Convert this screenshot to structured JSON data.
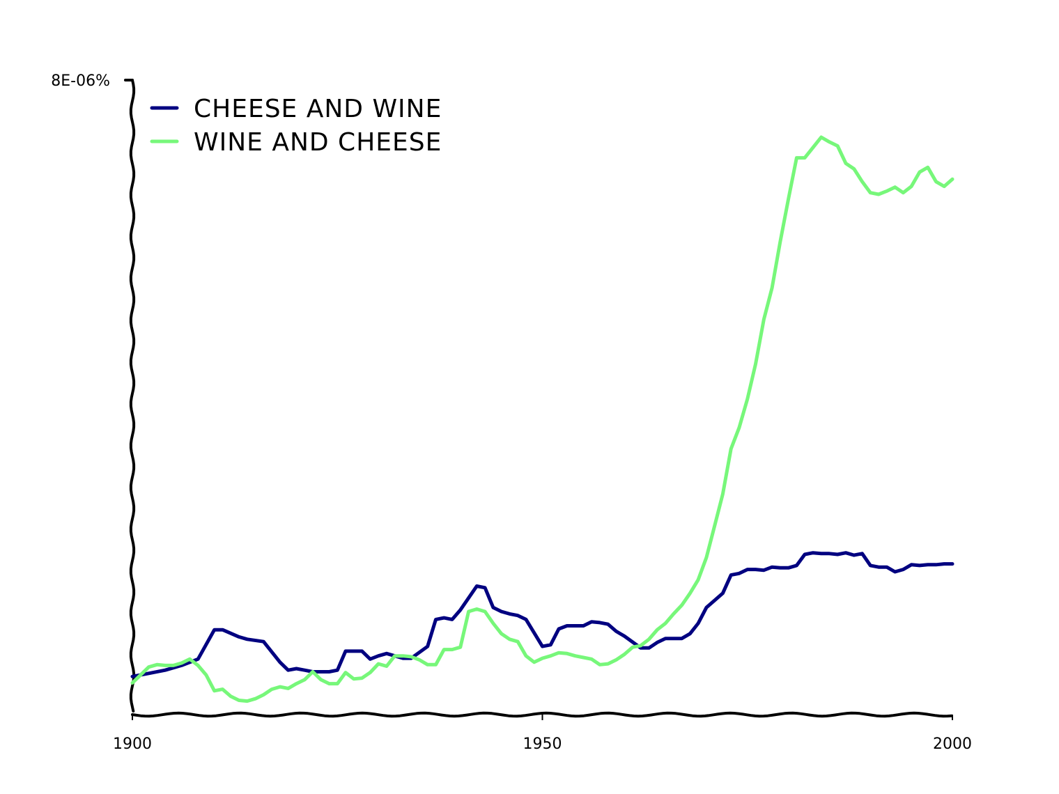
{
  "colors": {
    "cheese_and_wine": "#000080",
    "wine_and_cheese": "#77f77a",
    "axis": "#000000"
  },
  "chart_data": {
    "type": "line",
    "title": "",
    "xlabel": "",
    "ylabel": "",
    "xlim": [
      1900,
      2000
    ],
    "ylim": [
      0,
      8e-06
    ],
    "x_ticks": [
      "1900",
      "1950",
      "2000"
    ],
    "y_ticks": [
      "8E-06%"
    ],
    "grid": false,
    "legend_position": "top-left",
    "series": [
      {
        "name": "CHEESE AND WINE",
        "color": "#000080",
        "x": [
          1900,
          1902,
          1904,
          1906,
          1908,
          1910,
          1911,
          1913,
          1914,
          1916,
          1918,
          1919,
          1920,
          1921,
          1922,
          1924,
          1925,
          1926,
          1927,
          1928,
          1929,
          1930,
          1931,
          1932,
          1933,
          1934,
          1936,
          1937,
          1938,
          1939,
          1940,
          1942,
          1943,
          1944,
          1945,
          1946,
          1947,
          1948,
          1950,
          1951,
          1952,
          1953,
          1954,
          1955,
          1956,
          1957,
          1958,
          1959,
          1960,
          1962,
          1963,
          1964,
          1965,
          1966,
          1967,
          1968,
          1969,
          1970,
          1971,
          1972,
          1973,
          1974,
          1975,
          1976,
          1977,
          1978,
          1979,
          1980,
          1981,
          1982,
          1983,
          1984,
          1985,
          1986,
          1987,
          1988,
          1989,
          1990,
          1991,
          1992,
          1993,
          1994,
          1995,
          1996,
          1997,
          1998,
          1999,
          2000
        ],
        "y": [
          4.8e-07,
          5.2e-07,
          5.6e-07,
          6.2e-07,
          7e-07,
          1.07e-06,
          1.07e-06,
          9.8e-07,
          9.5e-07,
          9.2e-07,
          6.6e-07,
          5.6e-07,
          5.8e-07,
          5.6e-07,
          5.4e-07,
          5.4e-07,
          5.6e-07,
          8e-07,
          8e-07,
          8e-07,
          7e-07,
          7.4e-07,
          7.7e-07,
          7.4e-07,
          7.1e-07,
          7.1e-07,
          8.6e-07,
          1.2e-06,
          1.22e-06,
          1.2e-06,
          1.32e-06,
          1.62e-06,
          1.6e-06,
          1.35e-06,
          1.3e-06,
          1.27e-06,
          1.25e-06,
          1.2e-06,
          8.6e-07,
          8.8e-07,
          1.08e-06,
          1.12e-06,
          1.12e-06,
          1.12e-06,
          1.17e-06,
          1.16e-06,
          1.14e-06,
          1.05e-06,
          9.9e-07,
          8.4e-07,
          8.4e-07,
          9.1e-07,
          9.6e-07,
          9.6e-07,
          9.6e-07,
          1.02e-06,
          1.15e-06,
          1.35e-06,
          1.44e-06,
          1.53e-06,
          1.76e-06,
          1.78e-06,
          1.83e-06,
          1.83e-06,
          1.82e-06,
          1.86e-06,
          1.85e-06,
          1.85e-06,
          1.88e-06,
          2.02e-06,
          2.04e-06,
          2.03e-06,
          2.03e-06,
          2.02e-06,
          2.04e-06,
          2.01e-06,
          2.03e-06,
          1.88e-06,
          1.86e-06,
          1.86e-06,
          1.8e-06,
          1.83e-06,
          1.89e-06,
          1.88e-06,
          1.89e-06,
          1.89e-06,
          1.9e-06,
          1.9e-06
        ]
      },
      {
        "name": "WINE AND CHEESE",
        "color": "#77f77a",
        "x": [
          1900,
          1901,
          1902,
          1903,
          1904,
          1905,
          1906,
          1907,
          1908,
          1909,
          1910,
          1911,
          1912,
          1913,
          1914,
          1915,
          1916,
          1917,
          1918,
          1919,
          1920,
          1921,
          1922,
          1923,
          1924,
          1925,
          1926,
          1927,
          1928,
          1929,
          1930,
          1931,
          1932,
          1933,
          1934,
          1935,
          1936,
          1937,
          1938,
          1939,
          1940,
          1941,
          1942,
          1943,
          1944,
          1945,
          1946,
          1947,
          1948,
          1949,
          1950,
          1951,
          1952,
          1953,
          1954,
          1955,
          1956,
          1957,
          1958,
          1959,
          1960,
          1961,
          1962,
          1963,
          1964,
          1965,
          1966,
          1967,
          1968,
          1969,
          1970,
          1971,
          1972,
          1973,
          1974,
          1975,
          1976,
          1977,
          1978,
          1979,
          1980,
          1981,
          1982,
          1983,
          1984,
          1985,
          1986,
          1987,
          1988,
          1989,
          1990,
          1991,
          1992,
          1993,
          1994,
          1995,
          1996,
          1997,
          1998,
          1999,
          2000
        ],
        "y": [
          4e-07,
          5e-07,
          6e-07,
          6.3e-07,
          6.2e-07,
          6.2e-07,
          6.5e-07,
          7e-07,
          6.2e-07,
          5e-07,
          3e-07,
          3.2e-07,
          2.3e-07,
          1.8e-07,
          1.7e-07,
          2e-07,
          2.5e-07,
          3.2e-07,
          3.5e-07,
          3.3e-07,
          3.9e-07,
          4.4e-07,
          5.4e-07,
          4.4e-07,
          3.9e-07,
          3.9e-07,
          5.3e-07,
          4.5e-07,
          4.6e-07,
          5.3e-07,
          6.4e-07,
          6.1e-07,
          7.4e-07,
          7.4e-07,
          7.3e-07,
          6.9e-07,
          6.3e-07,
          6.3e-07,
          8.2e-07,
          8.2e-07,
          8.5e-07,
          1.3e-06,
          1.33e-06,
          1.3e-06,
          1.15e-06,
          1.02e-06,
          9.5e-07,
          9.2e-07,
          7.4e-07,
          6.6e-07,
          7.1e-07,
          7.4e-07,
          7.8e-07,
          7.7e-07,
          7.4e-07,
          7.2e-07,
          7e-07,
          6.3e-07,
          6.4e-07,
          6.9e-07,
          7.6e-07,
          8.5e-07,
          8.7e-07,
          9.5e-07,
          1.07e-06,
          1.15e-06,
          1.27e-06,
          1.38e-06,
          1.53e-06,
          1.7e-06,
          1.98e-06,
          2.38e-06,
          2.78e-06,
          3.35e-06,
          3.62e-06,
          3.98e-06,
          4.42e-06,
          4.98e-06,
          5.38e-06,
          5.96e-06,
          6.5e-06,
          7.02e-06,
          7.02e-06,
          7.15e-06,
          7.28e-06,
          7.22e-06,
          7.17e-06,
          6.95e-06,
          6.88e-06,
          6.72e-06,
          6.58e-06,
          6.56e-06,
          6.6e-06,
          6.65e-06,
          6.58e-06,
          6.66e-06,
          6.84e-06,
          6.9e-06,
          6.72e-06,
          6.66e-06,
          6.75e-06
        ]
      }
    ]
  }
}
